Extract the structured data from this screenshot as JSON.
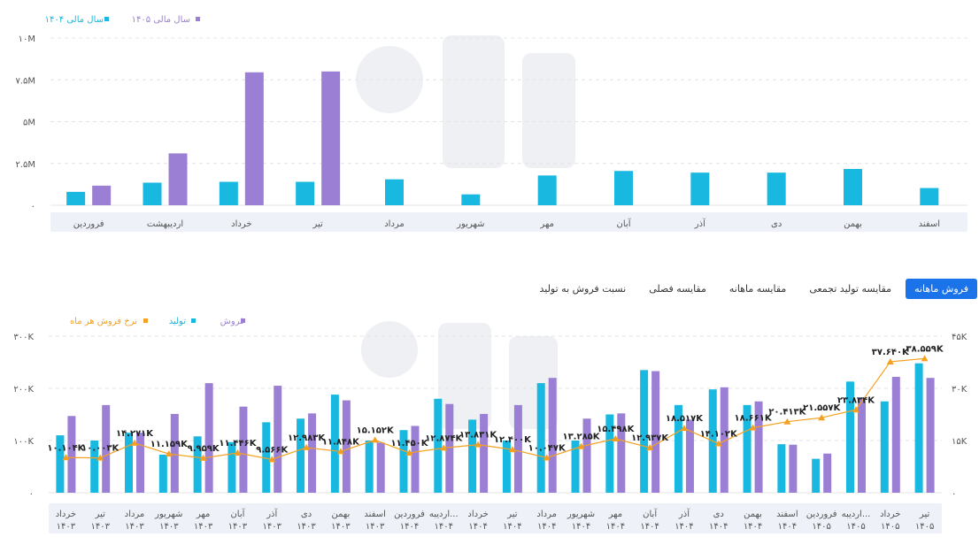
{
  "tabs": [
    {
      "label": "فروش ماهانه",
      "active": true
    },
    {
      "label": "مقایسه تولید تجمعی",
      "active": false
    },
    {
      "label": "مقایسه ماهانه",
      "active": false
    },
    {
      "label": "مقایسه فصلی",
      "active": false
    },
    {
      "label": "نسبت فروش به تولید",
      "active": false
    }
  ],
  "colors": {
    "cyan": "#19b8e0",
    "purple": "#9b7fd4",
    "orange": "#f5a020",
    "band": "#eef1f8",
    "grid": "#e4e4e4"
  },
  "chart_data": [
    {
      "type": "bar",
      "legend": [
        "سال مالی ۱۴۰۵",
        "سال مالی ۱۴۰۴"
      ],
      "categories": [
        "فروردین",
        "اردیبهشت",
        "خرداد",
        "تیر",
        "مرداد",
        "شهریور",
        "مهر",
        "آبان",
        "آذر",
        "دی",
        "بهمن",
        "اسفند"
      ],
      "series": [
        {
          "name": "سال مالی ۱۴۰۴",
          "color": "#19b8e0",
          "values": [
            0.8,
            1.35,
            1.4,
            1.4,
            1.55,
            0.65,
            1.78,
            2.05,
            1.95,
            1.95,
            2.17,
            1.03
          ]
        },
        {
          "name": "سال مالی ۱۴۰۵",
          "color": "#9b7fd4",
          "values": [
            1.17,
            3.1,
            7.95,
            8.0,
            null,
            null,
            null,
            null,
            null,
            null,
            null,
            null
          ]
        }
      ],
      "yticks": [
        "۰",
        "۲.۵M",
        "۵M",
        "۷.۵M",
        "۱۰M"
      ],
      "ylim": [
        0,
        10
      ]
    },
    {
      "type": "bar",
      "legend": [
        "فروش",
        "تولید",
        "نرخ فروش هر ماه"
      ],
      "categories": [
        [
          "خرداد",
          "۱۴۰۳"
        ],
        [
          "تیر",
          "۱۴۰۳"
        ],
        [
          "مرداد",
          "۱۴۰۳"
        ],
        [
          "شهریور",
          "۱۴۰۳"
        ],
        [
          "مهر",
          "۱۴۰۳"
        ],
        [
          "آبان",
          "۱۴۰۳"
        ],
        [
          "آذر",
          "۱۴۰۳"
        ],
        [
          "دی",
          "۱۴۰۳"
        ],
        [
          "بهمن",
          "۱۴۰۳"
        ],
        [
          "اسفند",
          "۱۴۰۳"
        ],
        [
          "فروردین",
          "۱۴۰۴"
        ],
        [
          "اردیبه...",
          "۱۴۰۴"
        ],
        [
          "خرداد",
          "۱۴۰۴"
        ],
        [
          "تیر",
          "۱۴۰۴"
        ],
        [
          "مرداد",
          "۱۴۰۴"
        ],
        [
          "شهریور",
          "۱۴۰۴"
        ],
        [
          "مهر",
          "۱۴۰۴"
        ],
        [
          "آبان",
          "۱۴۰۴"
        ],
        [
          "آذر",
          "۱۴۰۴"
        ],
        [
          "دی",
          "۱۴۰۴"
        ],
        [
          "بهمن",
          "۱۴۰۴"
        ],
        [
          "اسفند",
          "۱۴۰۴"
        ],
        [
          "فروردین",
          "۱۴۰۵"
        ],
        [
          "اردیبه...",
          "۱۴۰۵"
        ],
        [
          "خرداد",
          "۱۴۰۵"
        ],
        [
          "تیر",
          "۱۴۰۵"
        ]
      ],
      "series": [
        {
          "name": "تولید",
          "color": "#19b8e0",
          "values": [
            110,
            100,
            115,
            73,
            108,
            97,
            135,
            142,
            188,
            100,
            120,
            180,
            140,
            100,
            210,
            100,
            150,
            235,
            168,
            198,
            168,
            93,
            65,
            213,
            175,
            248
          ]
        },
        {
          "name": "فروش",
          "color": "#9b7fd4",
          "values": [
            147,
            168,
            115,
            151,
            210,
            165,
            205,
            152,
            177,
            96,
            128,
            170,
            151,
            168,
            220,
            142,
            152,
            233,
            140,
            202,
            175,
            92,
            75,
            182,
            222,
            220
          ]
        }
      ],
      "line": {
        "name": "نرخ فروش هر ماه",
        "color": "#f5a020",
        "values": [
          10.104,
          10.003,
          14.271,
          11.159,
          9.959,
          11.446,
          9.566,
          12.983,
          11.848,
          15.152,
          11.45,
          12.874,
          13.831,
          12.4,
          10.047,
          13.285,
          15.498,
          12.937,
          18.517,
          14.102,
          18.661,
          20.413,
          21.557,
          23.834,
          37.64,
          38.559
        ],
        "labels": [
          "۱۰.۱۰۴K",
          "۱۰.۰۰۳K",
          "۱۴.۲۷۱K",
          "۱۱.۱۵۹K",
          "۹.۹۵۹K",
          "۱۱.۴۴۶K",
          "۹.۵۶۶K",
          "۱۲.۹۸۳K",
          "۱۱.۸۴۸K",
          "۱۵.۱۵۲K",
          "۱۱.۴۵۰K",
          "۱۲.۸۷۴K",
          "۱۳.۸۳۱K",
          "۱۲.۴۰۰K",
          "۱۰.۰۴۷K",
          "۱۳.۲۸۵K",
          "۱۵.۴۹۸K",
          "۱۲.۹۳۷K",
          "۱۸.۵۱۷K",
          "۱۴.۱۰۲K",
          "۱۸.۶۶۱K",
          "۲۰.۴۱۳K",
          "۲۱.۵۵۷K",
          "۲۳.۸۳۴K",
          "۳۷.۶۴۰K",
          "۳۸.۵۵۹K"
        ]
      },
      "yticks_left": [
        "۰",
        "۱۰۰K",
        "۲۰۰K",
        "۳۰۰K"
      ],
      "yticks_right": [
        "۰",
        "۱۵K",
        "۳۰K",
        "۴۵K"
      ],
      "ylim_left": [
        0,
        300
      ],
      "ylim_right": [
        0,
        45
      ]
    }
  ]
}
